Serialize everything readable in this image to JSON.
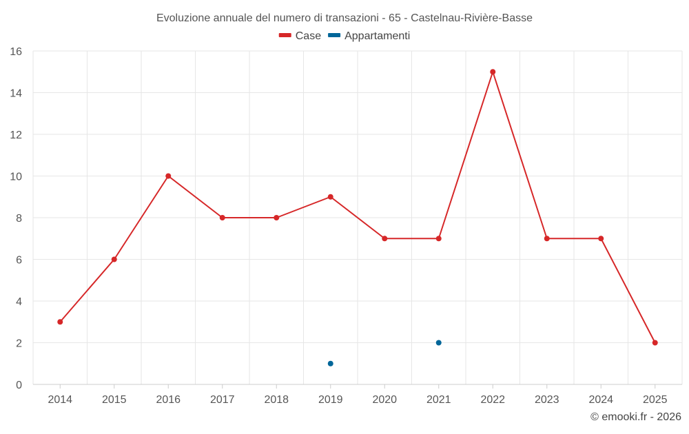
{
  "chart_data": {
    "type": "line",
    "title": "Evoluzione annuale del numero di transazioni - 65 - Castelnau-Rivière-Basse",
    "categories": [
      "2014",
      "2015",
      "2016",
      "2017",
      "2018",
      "2019",
      "2020",
      "2021",
      "2022",
      "2023",
      "2024",
      "2025"
    ],
    "series": [
      {
        "name": "Case",
        "color": "#d62728",
        "values": [
          3,
          6,
          10,
          8,
          8,
          9,
          7,
          7,
          15,
          7,
          7,
          2
        ]
      },
      {
        "name": "Appartamenti",
        "color": "#006699",
        "values": [
          null,
          null,
          null,
          null,
          null,
          1,
          null,
          2,
          null,
          null,
          null,
          null
        ]
      }
    ],
    "ylim": [
      0,
      16
    ],
    "yticks": [
      0,
      2,
      4,
      6,
      8,
      10,
      12,
      14,
      16
    ],
    "xlabel": "",
    "ylabel": "",
    "grid": true,
    "legend_position": "top-center"
  },
  "credit": "© emooki.fr - 2026"
}
